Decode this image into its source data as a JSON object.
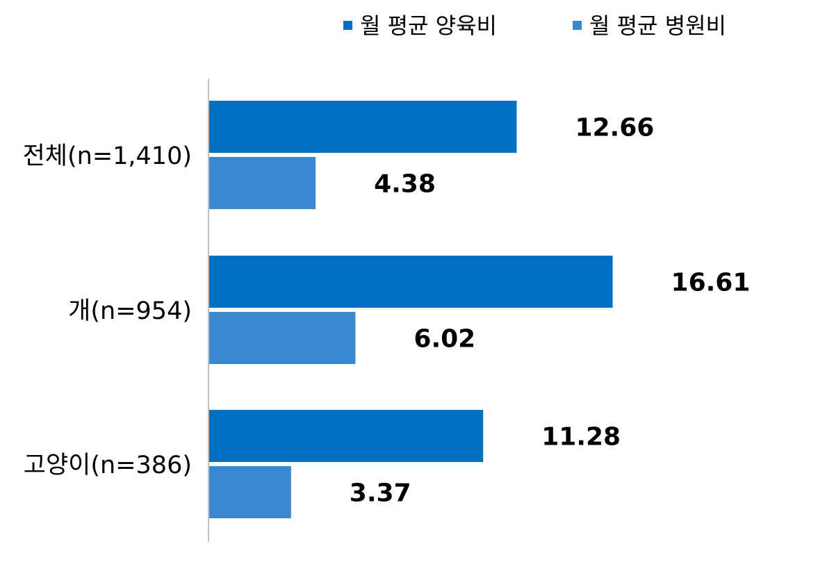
{
  "chart_data": {
    "type": "bar",
    "orientation": "horizontal",
    "categories": [
      "전체(n=1,410)",
      "개(n=954)",
      "고양이(n=386)"
    ],
    "series": [
      {
        "name": "월 평균 양육비",
        "values": [
          12.66,
          16.61,
          11.28
        ],
        "value_labels": [
          "12.66",
          "16.61",
          "11.28"
        ],
        "color": "#0070C0"
      },
      {
        "name": "월 평균 병원비",
        "values": [
          4.38,
          6.02,
          3.37
        ],
        "value_labels": [
          "4.38",
          "6.02",
          "3.37"
        ],
        "color": "#3A89D0"
      }
    ],
    "legend_position": "top-right",
    "grid": false,
    "xlim": [
      0,
      20
    ]
  }
}
